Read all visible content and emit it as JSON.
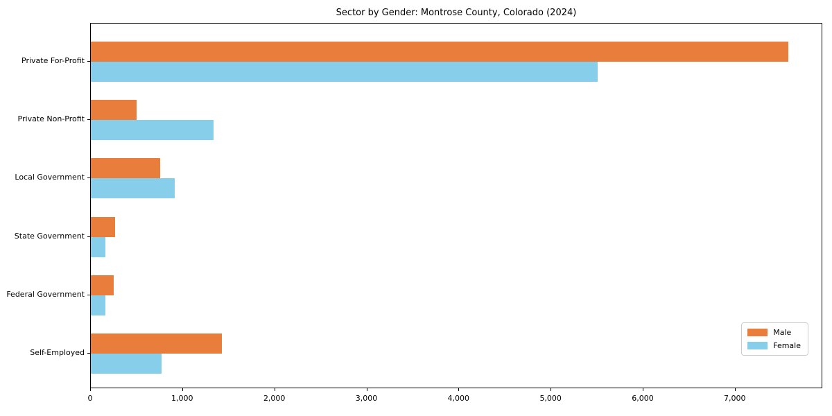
{
  "chart_data": {
    "type": "bar",
    "orientation": "horizontal",
    "title": "Sector by Gender: Montrose County, Colorado (2024)",
    "categories": [
      "Private For-Profit",
      "Private Non-Profit",
      "Local Government",
      "State Government",
      "Federal Government",
      "Self-Employed"
    ],
    "series": [
      {
        "name": "Male",
        "color": "#E87D3C",
        "values": [
          7570,
          500,
          750,
          265,
          250,
          1420
        ]
      },
      {
        "name": "Female",
        "color": "#87CEEB",
        "values": [
          5500,
          1330,
          910,
          155,
          160,
          765
        ]
      }
    ],
    "xlim": [
      0,
      7950
    ],
    "xticks": [
      0,
      1000,
      2000,
      3000,
      4000,
      5000,
      6000,
      7000
    ],
    "xtick_labels": [
      "0",
      "1,000",
      "2,000",
      "3,000",
      "4,000",
      "5,000",
      "6,000",
      "7,000"
    ],
    "xlabel": "",
    "ylabel": "",
    "grid": false,
    "legend_position": "lower right"
  }
}
